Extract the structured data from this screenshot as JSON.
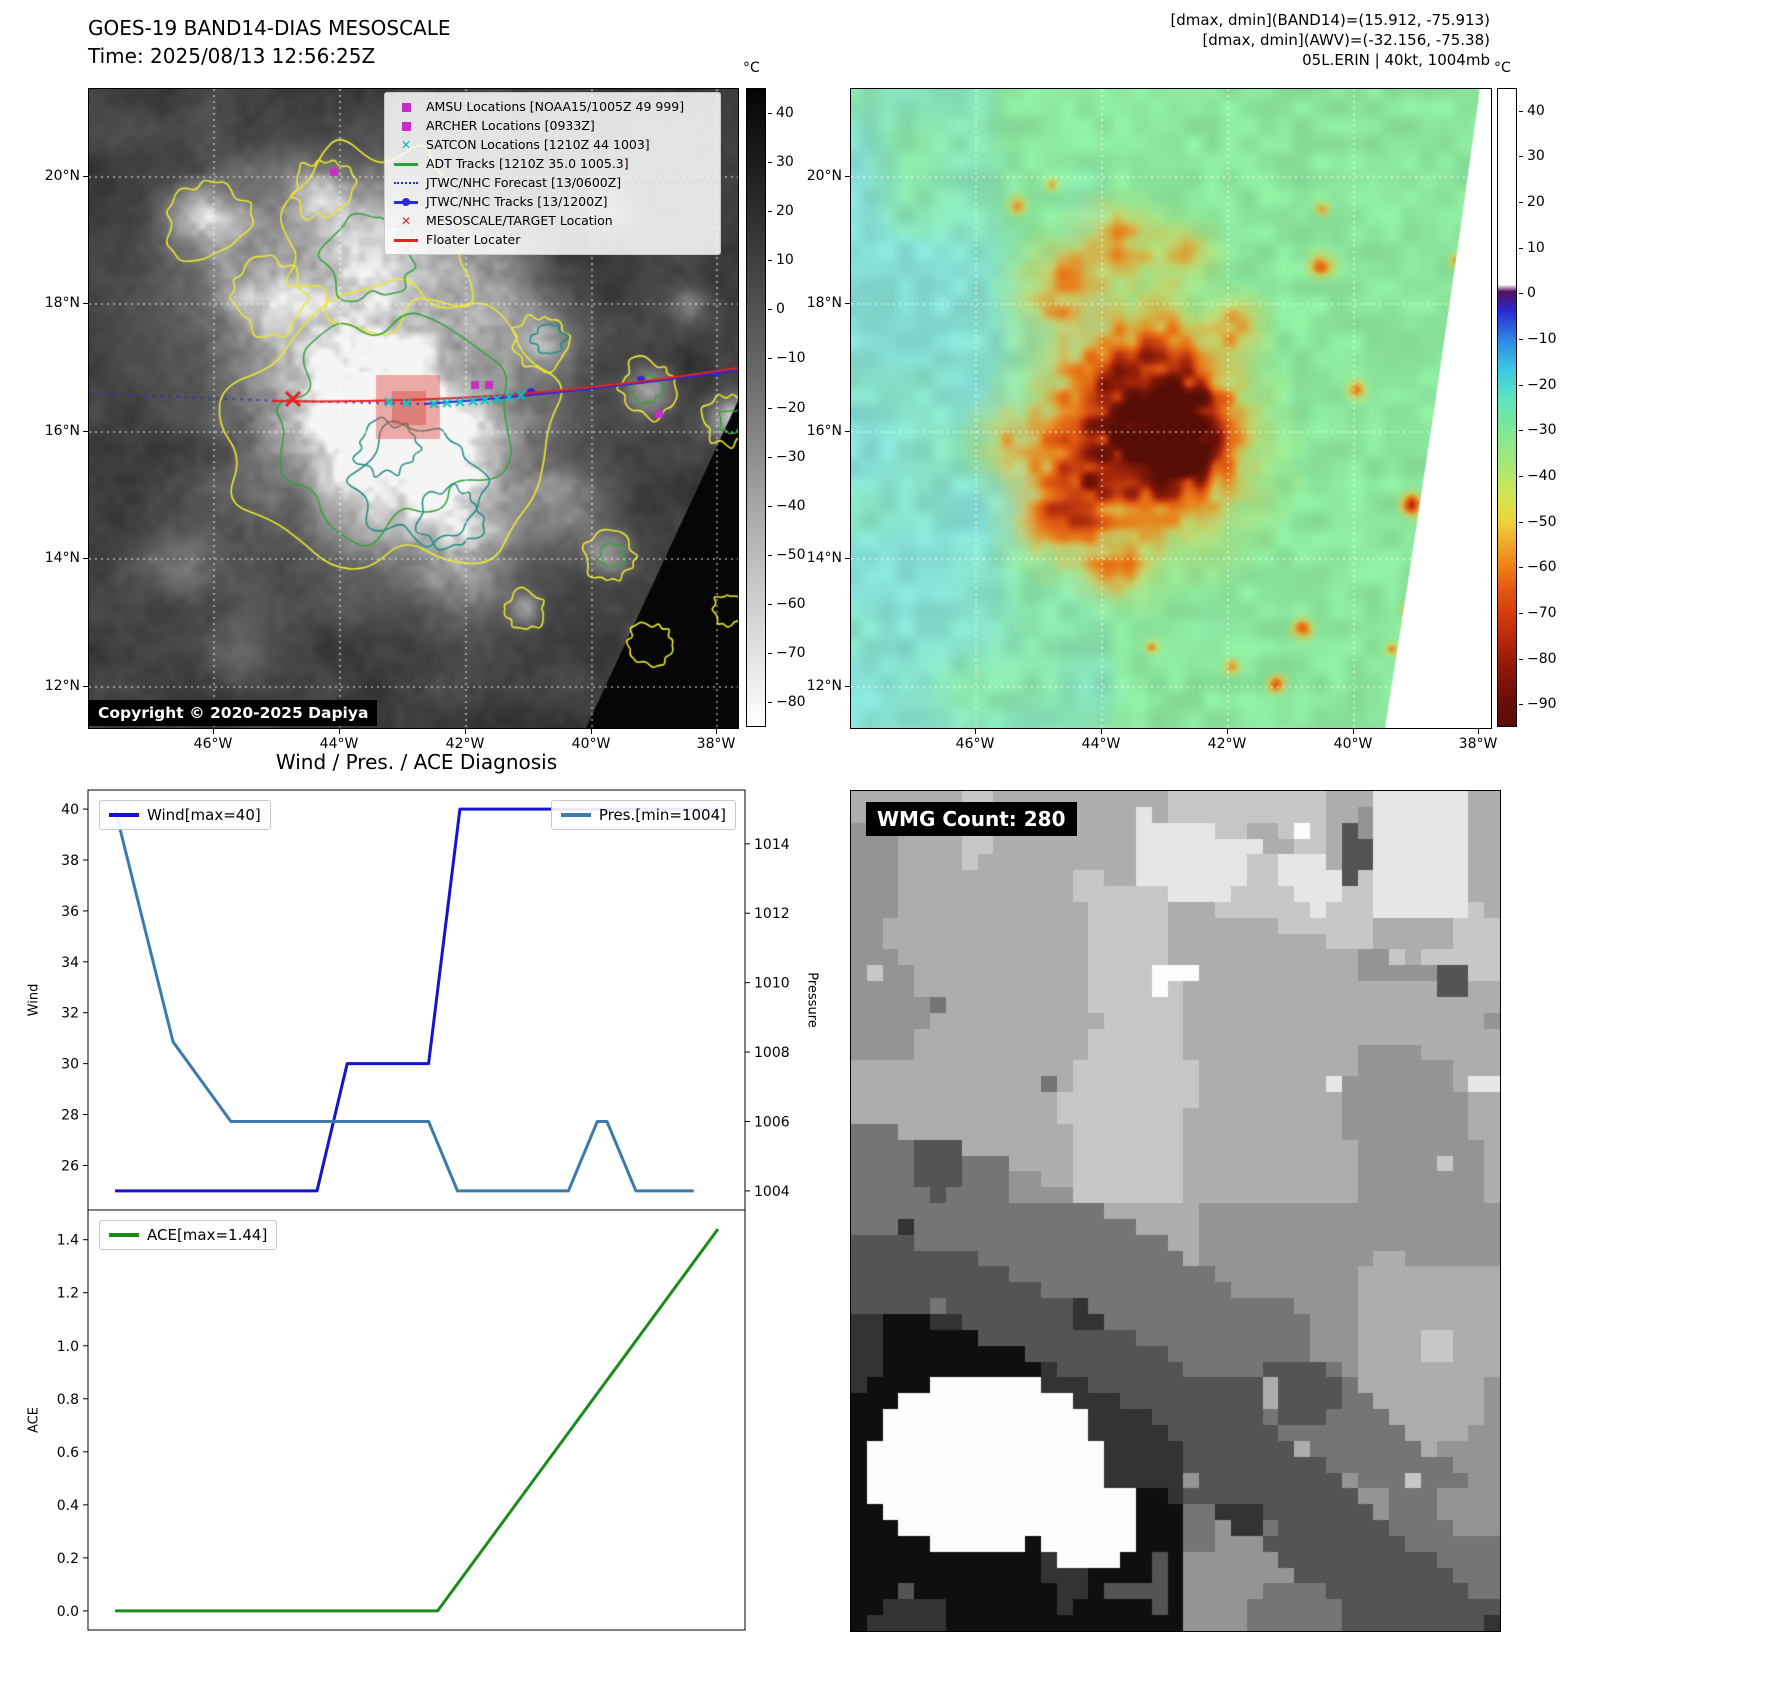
{
  "tl": {
    "title": "GOES-19 BAND14-DIAS MESOSCALE",
    "time_line": "Time: 2025/08/13 12:56:25Z",
    "copyright": "Copyright © 2020-2025 Dapiya",
    "lat_ticks": [
      "20°N",
      "18°N",
      "16°N",
      "14°N",
      "12°N"
    ],
    "lon_ticks": [
      "46°W",
      "44°W",
      "42°W",
      "40°W",
      "38°W"
    ],
    "colorbar": {
      "unit": "°C",
      "values": [
        40,
        30,
        20,
        10,
        0,
        -10,
        -20,
        -30,
        -40,
        -50,
        -60,
        -70,
        -80
      ],
      "labels": [
        "40",
        "30",
        "20",
        "10",
        "0",
        "−10",
        "−20",
        "−30",
        "−40",
        "−50",
        "−60",
        "−70",
        "−80"
      ]
    },
    "legend_items": [
      {
        "label": "AMSU Locations [NOAA15/1005Z 49 999]",
        "marker": "square",
        "color": "#c42fc4"
      },
      {
        "label": "ARCHER Locations [0933Z]",
        "marker": "square",
        "color": "#c42fc4"
      },
      {
        "label": "SATCON Locations [1210Z 44 1003]",
        "marker": "x",
        "color": "#00b8b8"
      },
      {
        "label": "ADT Tracks [1210Z 35.0 1005.3]",
        "marker": "line",
        "color": "#2e9e38"
      },
      {
        "label": "JTWC/NHC Forecast [13/0600Z]",
        "marker": "dotted",
        "color": "#2828dc"
      },
      {
        "label": "JTWC/NHC Tracks [13/1200Z]",
        "marker": "line-dot",
        "color": "#2828dc"
      },
      {
        "label": "MESOSCALE/TARGET Location",
        "marker": "x",
        "color": "#e62222"
      },
      {
        "label": "Floater Locater",
        "marker": "line",
        "color": "#e62222"
      }
    ]
  },
  "tr": {
    "header_lines": [
      "[dmax, dmin](BAND14)=(15.912, -75.913)",
      "[dmax, dmin](AWV)=(-32.156, -75.38)",
      "05L.ERIN | 40kt, 1004mb"
    ],
    "lat_ticks": [
      "20°N",
      "18°N",
      "16°N",
      "14°N",
      "12°N"
    ],
    "lon_ticks": [
      "46°W",
      "44°W",
      "42°W",
      "40°W",
      "38°W"
    ],
    "colorbar": {
      "unit": "°C",
      "values": [
        40,
        30,
        20,
        10,
        0,
        -10,
        -20,
        -30,
        -40,
        -50,
        -60,
        -70,
        -80,
        -90
      ],
      "labels": [
        "40",
        "30",
        "20",
        "10",
        "0",
        "−10",
        "−20",
        "−30",
        "−40",
        "−50",
        "−60",
        "−70",
        "−80",
        "−90"
      ]
    }
  },
  "br": {
    "label": "WMG Count: 280"
  },
  "chart_data": [
    {
      "type": "line",
      "title": "Wind / Pres. / ACE Diagnosis",
      "xlim": [
        -0.045,
        1.045
      ],
      "grid": false,
      "series": [
        {
          "name": "Wind[max=40]",
          "axis": "left",
          "color": "#1414cc",
          "legend_position": "upper-left",
          "points": [
            [
              0,
              25
            ],
            [
              0.335,
              25
            ],
            [
              0.385,
              30
            ],
            [
              0.52,
              30
            ],
            [
              0.572,
              40
            ],
            [
              1,
              40
            ]
          ]
        },
        {
          "name": "Pres.[min=1004]",
          "axis": "right",
          "color": "#3d7aab",
          "legend_position": "upper-right",
          "points": [
            [
              0,
              1015
            ],
            [
              0.096,
              1008.3
            ],
            [
              0.192,
              1006
            ],
            [
              0.52,
              1006
            ],
            [
              0.568,
              1004
            ],
            [
              0.752,
              1004
            ],
            [
              0.8,
              1006
            ],
            [
              0.816,
              1006
            ],
            [
              0.864,
              1004
            ],
            [
              0.96,
              1004
            ]
          ]
        }
      ],
      "left_axis": {
        "label": "Wind",
        "ylim": [
          24.25,
          40.75
        ],
        "ticks": [
          [
            26,
            "26"
          ],
          [
            28,
            "28"
          ],
          [
            30,
            "30"
          ],
          [
            32,
            "32"
          ],
          [
            34,
            "34"
          ],
          [
            36,
            "36"
          ],
          [
            38,
            "38"
          ],
          [
            40,
            "40"
          ]
        ]
      },
      "right_axis": {
        "label": "Pressure",
        "ylim": [
          1003.45,
          1015.55
        ],
        "ticks": [
          [
            1004,
            "1004"
          ],
          [
            1006,
            "1006"
          ],
          [
            1008,
            "1008"
          ],
          [
            1010,
            "1010"
          ],
          [
            1012,
            "1012"
          ],
          [
            1014,
            "1014"
          ]
        ]
      }
    },
    {
      "type": "line",
      "title": "",
      "xlim": [
        -0.045,
        1.045
      ],
      "grid": false,
      "series": [
        {
          "name": "ACE[max=1.44]",
          "axis": "left",
          "color": "#1a8c1a",
          "legend_position": "upper-left",
          "points": [
            [
              0,
              0
            ],
            [
              0.535,
              0
            ],
            [
              1,
              1.44
            ]
          ]
        }
      ],
      "left_axis": {
        "label": "ACE",
        "ylim": [
          -0.072,
          1.512
        ],
        "ticks": [
          [
            0,
            "0.0"
          ],
          [
            0.2,
            "0.2"
          ],
          [
            0.4,
            "0.4"
          ],
          [
            0.6,
            "0.6"
          ],
          [
            0.8,
            "0.8"
          ],
          [
            1,
            "1.0"
          ],
          [
            1.2,
            "1.2"
          ],
          [
            1.4,
            "1.4"
          ]
        ]
      }
    }
  ]
}
